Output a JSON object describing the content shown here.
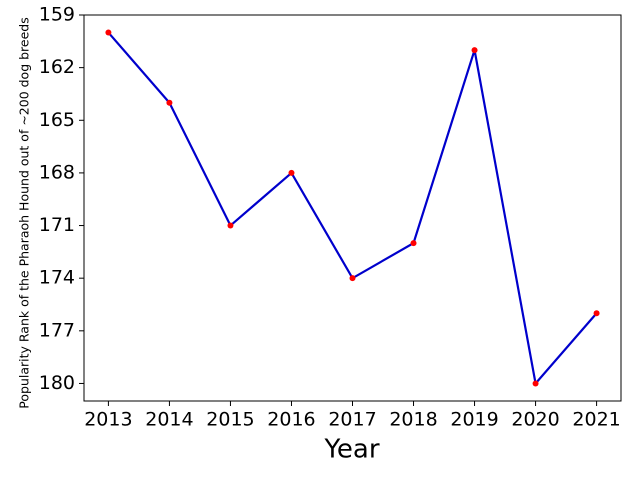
{
  "chart_data": {
    "type": "line",
    "x_label": "Year",
    "y_label": "Popularity Rank of the Pharaoh Hound out of ~200 dog breeds",
    "x": [
      2013,
      2014,
      2015,
      2016,
      2017,
      2018,
      2019,
      2020,
      2021
    ],
    "series": [
      {
        "values": [
          160,
          164,
          171,
          168,
          174,
          172,
          161,
          180,
          176
        ],
        "color": "#0000cc",
        "marker_color": "#ff0000"
      }
    ],
    "xlim": [
      2012.6,
      2021.4
    ],
    "xticks": [
      2013,
      2014,
      2015,
      2016,
      2017,
      2018,
      2019,
      2020,
      2021
    ],
    "ylim": [
      159,
      181
    ],
    "y_inverted": true,
    "yticks": [
      159,
      162,
      165,
      168,
      171,
      174,
      177,
      180
    ],
    "grid": false
  }
}
